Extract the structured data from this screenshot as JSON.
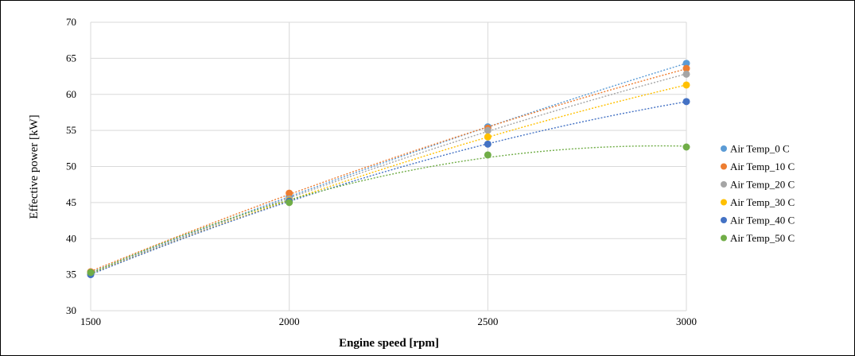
{
  "chart_data": {
    "type": "scatter",
    "xlabel": "Engine  speed [rpm]",
    "ylabel": "Effective power [kW]",
    "xlim": [
      1500,
      3000
    ],
    "ylim": [
      30,
      70
    ],
    "x_ticks": [
      1500,
      2000,
      2500,
      3000
    ],
    "y_ticks": [
      30,
      35,
      40,
      45,
      50,
      55,
      60,
      65,
      70
    ],
    "grid": true,
    "trendlines": "dotted",
    "legend_position": "right",
    "x": [
      1500,
      2000,
      2500,
      3000
    ],
    "series": [
      {
        "name": "Air Temp_0 C",
        "color": "#5b9bd5",
        "values": [
          35.3,
          45.8,
          55.5,
          64.3
        ]
      },
      {
        "name": "Air Temp_10 C",
        "color": "#ed7d31",
        "values": [
          35.4,
          46.3,
          55.3,
          63.6
        ]
      },
      {
        "name": "Air Temp_20 C",
        "color": "#a5a5a5",
        "values": [
          35.2,
          45.5,
          55.0,
          62.8
        ]
      },
      {
        "name": "Air Temp_30 C",
        "color": "#ffc000",
        "values": [
          35.1,
          45.3,
          54.1,
          61.3
        ]
      },
      {
        "name": "Air Temp_40 C",
        "color": "#4472c4",
        "values": [
          35.0,
          45.2,
          53.1,
          59.0
        ]
      },
      {
        "name": "Air Temp_50 C",
        "color": "#70ad47",
        "values": [
          35.3,
          45.0,
          51.6,
          52.7
        ]
      }
    ]
  }
}
